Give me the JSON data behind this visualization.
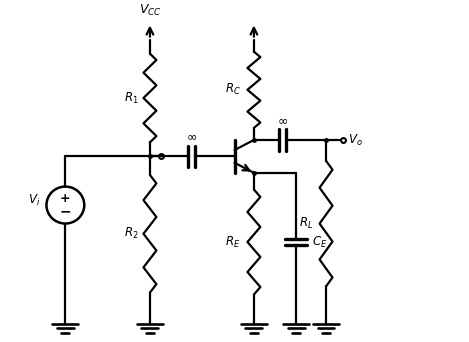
{
  "bg_color": "#ffffff",
  "line_color": "#000000",
  "lw": 1.6,
  "fig_width": 4.69,
  "fig_height": 3.42,
  "dpi": 100
}
